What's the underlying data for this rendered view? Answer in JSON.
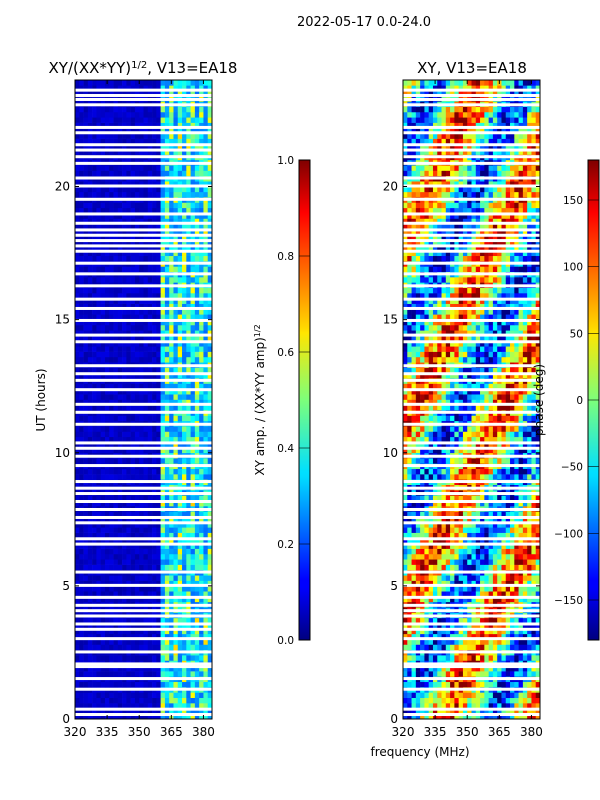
{
  "suptitle": "2022-05-17 0.0-24.0",
  "colors": {
    "background": "#ffffff",
    "low": "#00007f",
    "high": "#7f0000"
  },
  "chart_data": [
    {
      "type": "heatmap",
      "title": "XY/(XX*YY)",
      "title_exponent": "1/2",
      "title_suffix": ", V13=EA18",
      "xlabel": "",
      "ylabel": "UT (hours)",
      "xlim": [
        320,
        384
      ],
      "ylim": [
        0,
        24
      ],
      "xticks": [
        320,
        335,
        350,
        365,
        380
      ],
      "yticks": [
        0,
        5,
        10,
        15,
        20
      ],
      "description_values": "normalized cross-correlation amplitude vs frequency and time; mostly low (~0.05) below 361 MHz, bright striations (0.3-0.6) between 361 and 384 MHz; many white (flagged) time rows",
      "colorbar": {
        "label": "XY amp. / (XX*YY amp)",
        "label_exponent": "1/2",
        "range": [
          0.0,
          1.0
        ],
        "ticks": [
          "0.0",
          "0.2",
          "0.4",
          "0.6",
          "0.8",
          "1.0"
        ],
        "colormap": "jet"
      }
    },
    {
      "type": "heatmap",
      "title": "XY, V13=EA18",
      "xlabel": "frequency (MHz)",
      "ylabel": "",
      "xlim": [
        320,
        384
      ],
      "ylim": [
        0,
        24
      ],
      "xticks": [
        320,
        335,
        350,
        365,
        380
      ],
      "yticks": [
        0,
        5,
        10,
        15,
        20
      ],
      "description_values": "cross-correlation phase in degrees, spanning -180 to 180 with noisy and wrapping diagonal structures",
      "colorbar": {
        "label": "phase (deg)",
        "range": [
          -180,
          180
        ],
        "ticks": [
          "-150",
          "-100",
          "-50",
          "0",
          "50",
          "100",
          "150"
        ],
        "colormap": "jet"
      }
    }
  ],
  "flagged_hours": [
    0.15,
    0.35,
    1.1,
    1.5,
    1.95,
    2.05,
    2.5,
    3.0,
    3.35,
    3.55,
    3.85,
    4.05,
    4.25,
    4.55,
    5.0,
    5.5,
    6.55,
    6.75,
    7.35,
    7.55,
    7.85,
    8.15,
    8.45,
    8.65,
    8.9,
    9.5,
    9.85,
    10.15,
    10.35,
    11.05,
    11.5,
    11.8,
    12.35,
    12.7,
    12.95,
    13.25,
    14.15,
    14.4,
    14.95,
    15.4,
    15.75,
    16.25,
    16.7,
    17.1,
    17.55,
    17.75,
    17.95,
    18.15,
    18.35,
    18.6,
    18.95,
    19.5,
    20.0,
    20.3,
    20.85,
    21.1,
    21.35,
    21.55,
    22.0,
    22.2,
    23.05,
    23.25,
    23.4,
    23.6
  ]
}
